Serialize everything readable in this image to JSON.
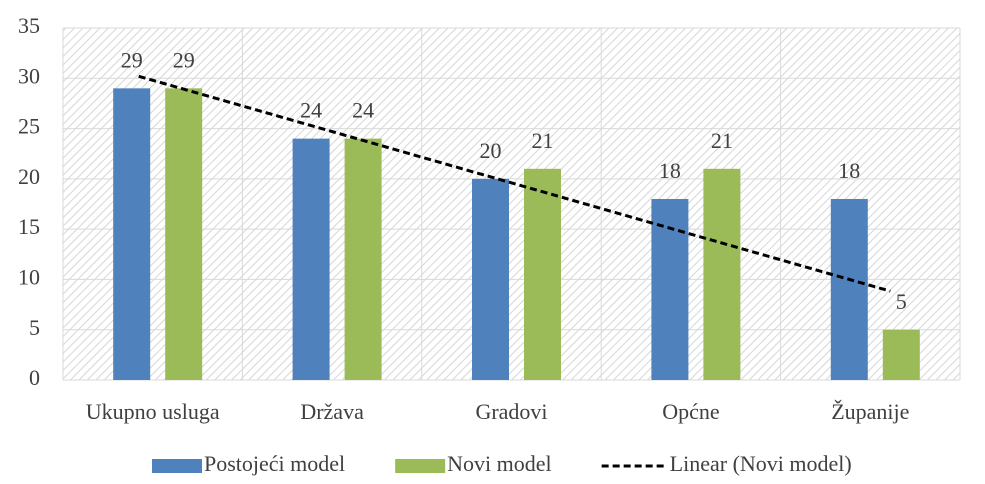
{
  "chart_data": {
    "type": "bar",
    "categories": [
      "Ukupno usluga",
      "Država",
      "Gradovi",
      "Općne",
      "Županije"
    ],
    "series": [
      {
        "name": "Postojeći model",
        "color": "#4f81bd",
        "values": [
          29,
          24,
          20,
          18,
          18
        ]
      },
      {
        "name": "Novi model",
        "color": "#9bbb59",
        "values": [
          29,
          24,
          21,
          21,
          5
        ]
      }
    ],
    "trendline": {
      "name": "Linear (Novi model)",
      "type": "linear",
      "color": "#000000"
    },
    "ylim": [
      0,
      35
    ],
    "yticks": [
      0,
      5,
      10,
      15,
      20,
      25,
      30,
      35
    ],
    "grid": true,
    "legend": "bottom"
  }
}
